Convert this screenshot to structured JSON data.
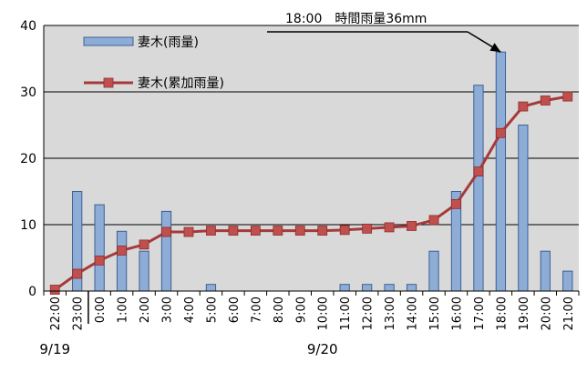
{
  "chart_data": {
    "type": "bar+line",
    "categories": [
      "22:00",
      "23:00",
      "0:00",
      "1:00",
      "2:00",
      "3:00",
      "4:00",
      "5:00",
      "6:00",
      "7:00",
      "8:00",
      "9:00",
      "10:00",
      "11:00",
      "12:00",
      "13:00",
      "14:00",
      "15:00",
      "16:00",
      "17:00",
      "18:00",
      "19:00",
      "20:00",
      "21:00"
    ],
    "date_labels": [
      {
        "label": "9/19",
        "category": "22:00"
      },
      {
        "label": "9/20",
        "category": "10:00"
      }
    ],
    "ylim": [
      0,
      40
    ],
    "yticks": [
      "0",
      "10",
      "20",
      "30",
      "40"
    ],
    "grid": true,
    "legend_position": "top-left",
    "series": [
      {
        "name": "妻木(雨量)",
        "type": "bar",
        "color": "#8eadd6",
        "values": [
          0,
          15,
          13,
          9,
          6,
          12,
          0,
          1,
          0,
          0,
          0,
          0,
          0,
          1,
          1,
          1,
          1,
          6,
          15,
          31,
          36,
          25,
          6,
          3
        ]
      },
      {
        "name": "妻木(累加雨量)",
        "type": "line",
        "color": "#a63a3a",
        "values": [
          0.2,
          2.6,
          4.6,
          6.1,
          7.0,
          8.9,
          8.9,
          9.1,
          9.1,
          9.1,
          9.1,
          9.1,
          9.1,
          9.2,
          9.4,
          9.6,
          9.8,
          10.7,
          13.1,
          18.0,
          23.8,
          27.8,
          28.7,
          29.3
        ]
      }
    ],
    "annotation": {
      "text": "18:00　時間雨量36mm",
      "target_category": "18:00",
      "target_value": 36
    }
  }
}
